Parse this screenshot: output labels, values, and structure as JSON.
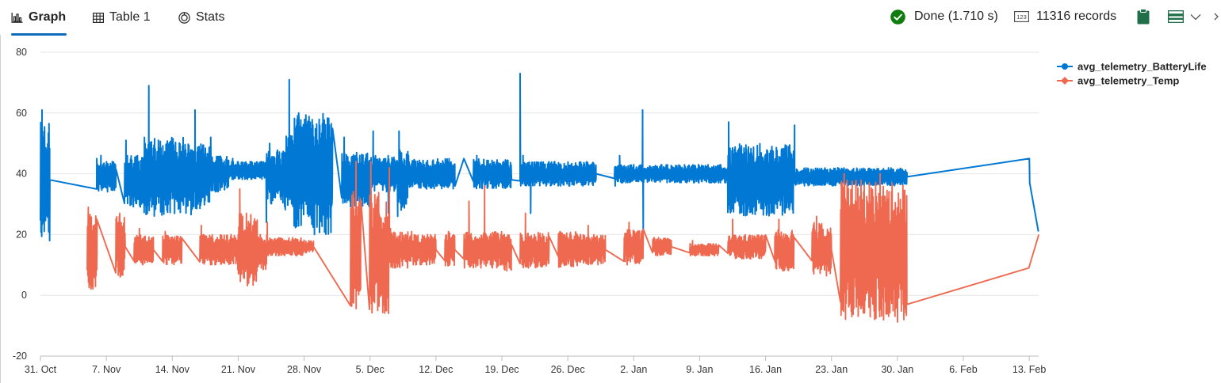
{
  "toolbar": {
    "tabs": [
      {
        "label": "Graph",
        "icon": "bar-chart-icon",
        "active": true
      },
      {
        "label": "Table 1",
        "icon": "table-icon",
        "active": false
      },
      {
        "label": "Stats",
        "icon": "stats-icon",
        "active": false
      }
    ],
    "status_text": "Done (1.710 s)",
    "records_text": "11316 records",
    "colors": {
      "success": "#107c10",
      "accent": "#0f6cbd",
      "icon_green": "#1f6f4a"
    }
  },
  "chart_data": {
    "type": "line",
    "title": "",
    "xlabel": "",
    "ylabel": "",
    "ylim": [
      -20,
      80
    ],
    "yticks": [
      -20,
      0,
      20,
      40,
      60,
      80
    ],
    "xlim": [
      "2023-10-31",
      "2024-02-14"
    ],
    "xticks": [
      "31. Oct",
      "7. Nov",
      "14. Nov",
      "21. Nov",
      "28. Nov",
      "5. Dec",
      "12. Dec",
      "19. Dec",
      "26. Dec",
      "2. Jan",
      "9. Jan",
      "16. Jan",
      "23. Jan",
      "30. Jan",
      "6. Feb",
      "13. Feb"
    ],
    "grid": true,
    "legend": "top-right",
    "series": [
      {
        "name": "avg_telemetry_BatteryLife",
        "color": "#0078d4",
        "segments": [
          {
            "x": [
              "2023-10-31",
              "2023-11-01"
            ],
            "mean": 38,
            "spread": 19,
            "peak": 61
          },
          {
            "x": [
              "2023-11-06",
              "2023-11-08"
            ],
            "mean": 39,
            "spread": 5,
            "peak": 46
          },
          {
            "x": [
              "2023-11-09",
              "2023-11-11"
            ],
            "mean": 37,
            "spread": 9,
            "peak": 51
          },
          {
            "x": [
              "2023-11-11",
              "2023-11-16"
            ],
            "mean": 39,
            "spread": 13,
            "peak": 69
          },
          {
            "x": [
              "2023-11-16",
              "2023-11-18"
            ],
            "mean": 39,
            "spread": 11,
            "peak": 61
          },
          {
            "x": [
              "2023-11-18",
              "2023-11-20"
            ],
            "mean": 40,
            "spread": 6,
            "peak": 52
          },
          {
            "x": [
              "2023-11-20",
              "2023-11-24"
            ],
            "mean": 41,
            "spread": 3,
            "peak": 45
          },
          {
            "x": [
              "2023-11-24",
              "2023-11-26"
            ],
            "mean": 39,
            "spread": 9,
            "peak": 50
          },
          {
            "x": [
              "2023-11-26",
              "2023-11-27"
            ],
            "mean": 40,
            "spread": 13,
            "peak": 71
          },
          {
            "x": [
              "2023-11-27",
              "2023-12-01"
            ],
            "mean": 40,
            "spread": 20,
            "peak": 60
          },
          {
            "x": [
              "2023-12-02",
              "2023-12-05"
            ],
            "mean": 38,
            "spread": 9,
            "peak": 52
          },
          {
            "x": [
              "2023-12-05",
              "2023-12-08"
            ],
            "mean": 40,
            "spread": 6,
            "peak": 54
          },
          {
            "x": [
              "2023-12-08",
              "2023-12-09"
            ],
            "mean": 38,
            "spread": 10,
            "peak": 54
          },
          {
            "x": [
              "2023-12-09",
              "2023-12-14"
            ],
            "mean": 40,
            "spread": 5,
            "peak": 46
          },
          {
            "x": [
              "2023-12-16",
              "2023-12-20"
            ],
            "mean": 40,
            "spread": 5,
            "peak": 46
          },
          {
            "x": [
              "2023-12-21",
              "2023-12-29"
            ],
            "mean": 40,
            "spread": 4,
            "peak": 46
          },
          {
            "x": [
              "2023-12-31",
              "2024-01-15"
            ],
            "mean": 40,
            "spread": 3,
            "peak": 46
          },
          {
            "x": [
              "2024-01-12",
              "2024-01-19"
            ],
            "mean": 38,
            "spread": 12,
            "peak": 57
          },
          {
            "x": [
              "2024-01-19",
              "2024-01-31"
            ],
            "mean": 39,
            "spread": 3,
            "peak": 56
          }
        ],
        "points": [
          [
            "2023-11-01",
            18
          ],
          [
            "2023-11-06",
            45
          ],
          [
            "2023-11-17",
            47
          ],
          [
            "2023-11-24",
            24
          ],
          [
            "2023-12-01",
            30
          ],
          [
            "2023-12-05",
            28
          ],
          [
            "2023-12-07",
            27
          ],
          [
            "2023-12-08",
            26
          ],
          [
            "2023-12-14",
            36
          ],
          [
            "2023-12-15",
            45
          ],
          [
            "2023-12-20",
            38
          ],
          [
            "2023-12-21",
            73
          ],
          [
            "2023-12-22",
            27
          ],
          [
            "2023-12-29",
            38
          ],
          [
            "2023-12-31",
            36
          ],
          [
            "2024-01-02",
            43
          ],
          [
            "2024-01-03",
            61
          ],
          [
            "2024-01-03",
            21
          ],
          [
            "2024-01-31",
            39
          ],
          [
            "2024-02-13",
            37
          ],
          [
            "2024-02-13",
            45
          ],
          [
            "2024-02-14",
            21
          ]
        ]
      },
      {
        "name": "avg_telemetry_Temp",
        "color": "#ef6950",
        "segments": [
          {
            "x": [
              "2023-11-05",
              "2023-11-06"
            ],
            "mean": 14,
            "spread": 13,
            "peak": 29
          },
          {
            "x": [
              "2023-11-08",
              "2023-11-09"
            ],
            "mean": 16,
            "spread": 10,
            "peak": 27
          },
          {
            "x": [
              "2023-11-10",
              "2023-11-12"
            ],
            "mean": 15,
            "spread": 5,
            "peak": 22
          },
          {
            "x": [
              "2023-11-13",
              "2023-11-15"
            ],
            "mean": 15,
            "spread": 5,
            "peak": 21
          },
          {
            "x": [
              "2023-11-17",
              "2023-11-20"
            ],
            "mean": 15,
            "spread": 5,
            "peak": 23
          },
          {
            "x": [
              "2023-11-20",
              "2023-11-21"
            ],
            "mean": 15,
            "spread": 5,
            "peak": 20
          },
          {
            "x": [
              "2023-11-21",
              "2023-11-23"
            ],
            "mean": 15,
            "spread": 12,
            "peak": 35
          },
          {
            "x": [
              "2023-11-23",
              "2023-11-24"
            ],
            "mean": 14,
            "spread": 6,
            "peak": 20
          },
          {
            "x": [
              "2023-11-24",
              "2023-11-28"
            ],
            "mean": 16,
            "spread": 3,
            "peak": 24
          },
          {
            "x": [
              "2023-11-28",
              "2023-11-29"
            ],
            "mean": 16,
            "spread": 2,
            "peak": 18
          },
          {
            "x": [
              "2023-12-03",
              "2023-12-04"
            ],
            "mean": 15,
            "spread": 20,
            "peak": 44
          },
          {
            "x": [
              "2023-12-05",
              "2023-12-07"
            ],
            "mean": 14,
            "spread": 20,
            "peak": 44
          },
          {
            "x": [
              "2023-12-07",
              "2023-12-09"
            ],
            "mean": 15,
            "spread": 6,
            "peak": 22
          },
          {
            "x": [
              "2023-12-09",
              "2023-12-12"
            ],
            "mean": 15,
            "spread": 5,
            "peak": 21
          },
          {
            "x": [
              "2023-12-13",
              "2023-12-14"
            ],
            "mean": 15,
            "spread": 6,
            "peak": 21
          },
          {
            "x": [
              "2023-12-15",
              "2023-12-17"
            ],
            "mean": 15,
            "spread": 6,
            "peak": 31
          },
          {
            "x": [
              "2023-12-17",
              "2023-12-19"
            ],
            "mean": 15,
            "spread": 6,
            "peak": 36
          },
          {
            "x": [
              "2023-12-19",
              "2023-12-20"
            ],
            "mean": 14,
            "spread": 6,
            "peak": 20
          },
          {
            "x": [
              "2023-12-21",
              "2023-12-24"
            ],
            "mean": 15,
            "spread": 6,
            "peak": 27
          },
          {
            "x": [
              "2023-12-25",
              "2023-12-27"
            ],
            "mean": 15,
            "spread": 6,
            "peak": 21
          },
          {
            "x": [
              "2023-12-27",
              "2023-12-28"
            ],
            "mean": 15,
            "spread": 5,
            "peak": 20
          },
          {
            "x": [
              "2023-12-28",
              "2023-12-30"
            ],
            "mean": 15,
            "spread": 5,
            "peak": 23
          },
          {
            "x": [
              "2024-01-01",
              "2024-01-03"
            ],
            "mean": 16,
            "spread": 6,
            "peak": 24
          },
          {
            "x": [
              "2024-01-04",
              "2024-01-06"
            ],
            "mean": 16,
            "spread": 3,
            "peak": 18
          },
          {
            "x": [
              "2024-01-08",
              "2024-01-11"
            ],
            "mean": 15,
            "spread": 2,
            "peak": 18
          },
          {
            "x": [
              "2024-01-12",
              "2024-01-16"
            ],
            "mean": 16,
            "spread": 4,
            "peak": 25
          },
          {
            "x": [
              "2024-01-17",
              "2024-01-19"
            ],
            "mean": 15,
            "spread": 7,
            "peak": 25
          },
          {
            "x": [
              "2024-01-21",
              "2024-01-23"
            ],
            "mean": 15,
            "spread": 9,
            "peak": 26
          },
          {
            "x": [
              "2024-01-24",
              "2024-01-28"
            ],
            "mean": 15,
            "spread": 23,
            "peak": 40
          },
          {
            "x": [
              "2024-01-28",
              "2024-01-31"
            ],
            "mean": 14,
            "spread": 23,
            "peak": 40
          }
        ],
        "points": [
          [
            "2023-12-07",
            42
          ],
          [
            "2024-01-31",
            -3
          ],
          [
            "2024-02-13",
            9
          ],
          [
            "2024-02-14",
            20
          ]
        ]
      }
    ]
  }
}
